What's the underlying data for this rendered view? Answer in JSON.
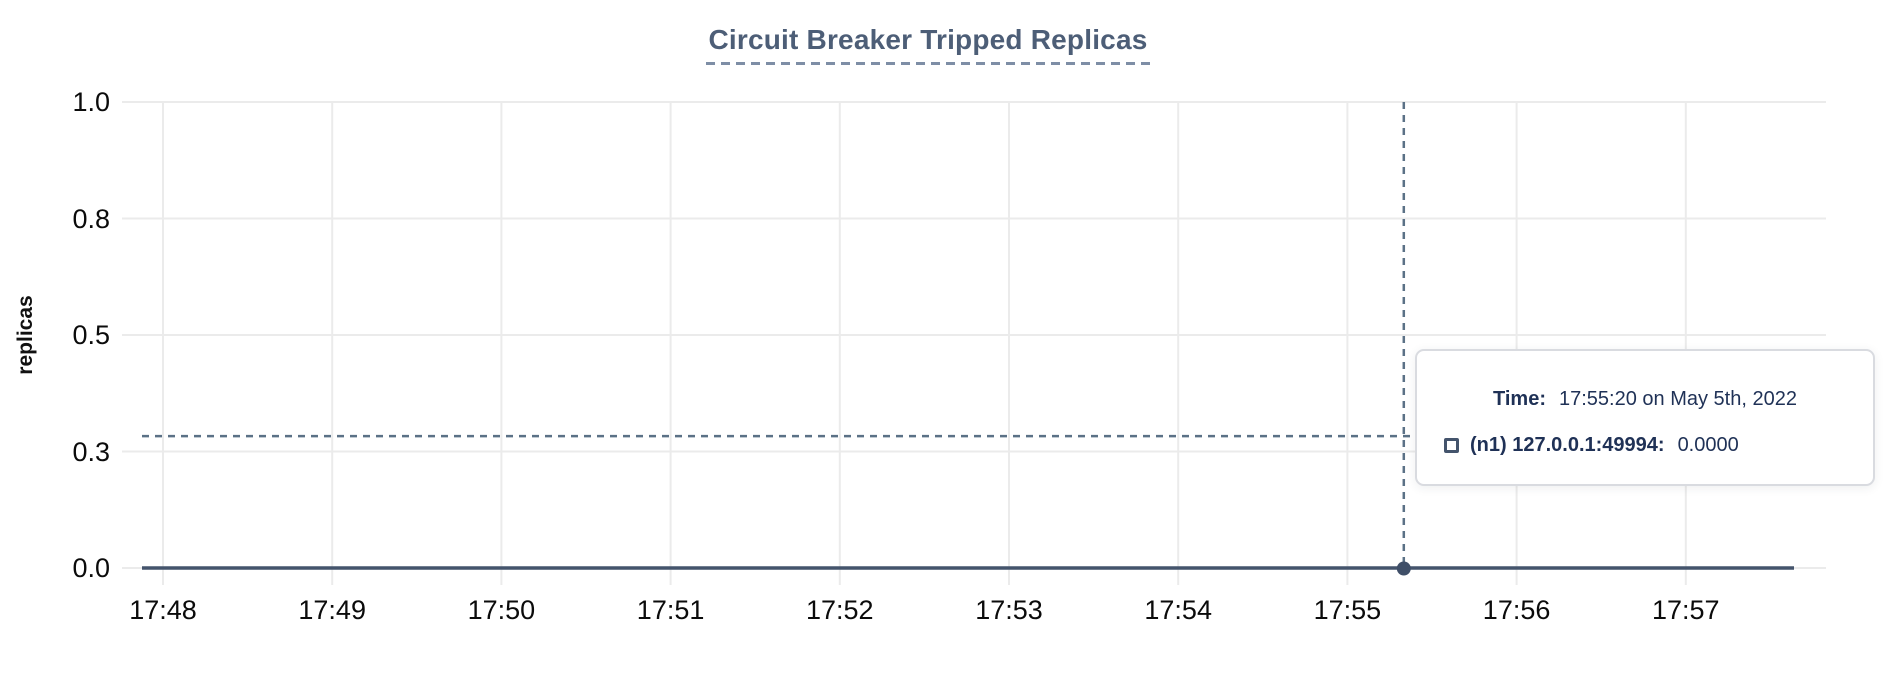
{
  "chart_data": {
    "type": "line",
    "title": "Circuit Breaker Tripped Replicas",
    "ylabel": "replicas",
    "xlabel": "",
    "grid": true,
    "legend_position": "none (hover tooltip only)",
    "ylim": [
      0.0,
      1.0
    ],
    "y_ticks": [
      {
        "label": "1.0",
        "value": 1.0
      },
      {
        "label": "0.8",
        "value": 0.75
      },
      {
        "label": "0.5",
        "value": 0.5
      },
      {
        "label": "0.3",
        "value": 0.25
      },
      {
        "label": "0.0",
        "value": 0.0
      }
    ],
    "x_tick_labels": [
      "17:48",
      "17:49",
      "17:50",
      "17:51",
      "17:52",
      "17:53",
      "17:54",
      "17:55",
      "17:56",
      "17:57"
    ],
    "x_axis_start": "17:48",
    "series": [
      {
        "name": "(n1) 127.0.0.1:49994",
        "constant_value": 0.0,
        "color": "#44546c",
        "extent_minutes": [
          -0.12,
          9.64
        ]
      }
    ],
    "hover": {
      "time": "17:55:20",
      "value": 0.0,
      "crosshair_y_value": 0.283
    }
  },
  "tooltip": {
    "time_label": "Time:",
    "time_value": "17:55:20 on May 5th, 2022",
    "series_label": "(n1) 127.0.0.1:49994:",
    "series_value": "0.0000"
  },
  "colors": {
    "title": "#4d5e77",
    "title_underline": "#7e8ea6",
    "grid": "#ebebeb",
    "series_line": "#44546c",
    "hover_dot": "#3f4f68",
    "crosshair": "#5b7186",
    "tooltip_text": "#1f3156",
    "tooltip_border": "#d9dbe0",
    "axis_text": "#0b0b0b"
  }
}
